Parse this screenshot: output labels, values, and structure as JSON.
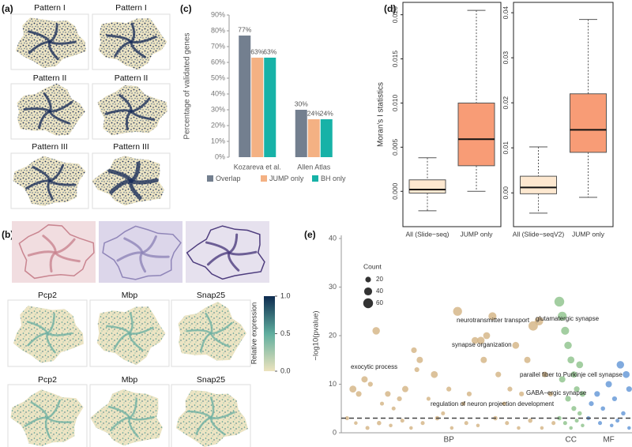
{
  "panels": {
    "a": {
      "label": "(a)",
      "titles": [
        "Pattern I",
        "Pattern I",
        "Pattern II",
        "Pattern II",
        "Pattern III",
        "Pattern III"
      ]
    },
    "b": {
      "label": "(b)",
      "genes_row1": [
        "Pcp2",
        "Mbp",
        "Snap25"
      ],
      "genes_row2": [
        "Pcp2",
        "Mbp",
        "Snap25"
      ],
      "colorbar": {
        "label": "Relative expression",
        "lim": [
          0,
          1
        ],
        "colors": [
          "#ede3bd",
          "#5fae9e",
          "#0d2b4f"
        ],
        "ticks": [
          {
            "value": 0,
            "label": "0.0"
          },
          0.5,
          {
            "value": 1,
            "label": "1.0"
          }
        ]
      }
    },
    "c": {
      "label": "(c)"
    },
    "d": {
      "label": "(d)"
    },
    "e": {
      "label": "(e)"
    }
  },
  "chart_data": [
    {
      "type": "bar",
      "ylabel": "Percentage of validated genes",
      "categories": [
        "Kozareva et al.",
        "Allen Atlas"
      ],
      "series": [
        {
          "name": "Overlap",
          "color": "#737f8f",
          "values": [
            77,
            30
          ],
          "value_labels": [
            "77%",
            "30%"
          ]
        },
        {
          "name": "JUMP only",
          "color": "#f4b183",
          "values": [
            63,
            24
          ],
          "value_labels": [
            "63%",
            "24%"
          ]
        },
        {
          "name": "BH only",
          "color": "#17b2a7",
          "values": [
            63,
            24
          ],
          "value_labels": [
            "63%",
            "24%"
          ]
        }
      ],
      "ylim": [
        0,
        90
      ],
      "yticks": [
        {
          "value": 0,
          "label": "0%"
        },
        {
          "value": 10,
          "label": "10%"
        },
        {
          "value": 20,
          "label": "20%"
        },
        {
          "value": 30,
          "label": "30%"
        },
        {
          "value": 40,
          "label": "40%"
        },
        {
          "value": 50,
          "label": "50%"
        },
        {
          "value": 60,
          "label": "60%"
        },
        {
          "value": 70,
          "label": "70%"
        },
        {
          "value": 80,
          "label": "80%"
        },
        {
          "value": 90,
          "label": "90%"
        }
      ],
      "legend": "bottom"
    },
    {
      "type": "box",
      "ylabel": "Moran's I statistics",
      "categories": [
        "All (Slide−seq)",
        "JUMP only"
      ],
      "colors": [
        "#fde8d0",
        "#f89c76"
      ],
      "boxes": [
        {
          "min": -0.0022,
          "q1": -0.0002,
          "median": 0.0002,
          "q3": 0.0013,
          "max": 0.0038
        },
        {
          "min": 0.0,
          "q1": 0.0029,
          "median": 0.0059,
          "q3": 0.01,
          "max": 0.0205
        }
      ],
      "ylim": [
        -0.004,
        0.0214
      ],
      "yticks": [
        {
          "value": 0,
          "label": "0.000"
        },
        0.005,
        {
          "value": 0.01,
          "label": "0.010"
        },
        0.015,
        {
          "value": 0.02,
          "label": "0.020"
        }
      ]
    },
    {
      "type": "box",
      "categories": [
        "All (Slide−seqV2)",
        "JUMP only"
      ],
      "colors": [
        "#fde8d0",
        "#f89c76"
      ],
      "boxes": [
        {
          "min": -0.0045,
          "q1": -0.0002,
          "median": 0.0012,
          "q3": 0.0037,
          "max": 0.0102
        },
        {
          "min": -0.001,
          "q1": 0.009,
          "median": 0.014,
          "q3": 0.022,
          "max": 0.0385
        }
      ],
      "ylim": [
        -0.0075,
        0.0423
      ],
      "yticks": [
        {
          "value": 0,
          "label": "0.00"
        },
        0.01,
        0.02,
        0.03,
        0.04
      ]
    },
    {
      "type": "scatter",
      "ylabel": "−log10(pvalue)",
      "xlim": [
        0,
        100
      ],
      "ylim": [
        0,
        40
      ],
      "yticks": [
        0,
        10,
        20,
        30,
        40
      ],
      "hline": 3,
      "size_legend": {
        "title": "Count",
        "values": [
          20,
          40,
          60
        ]
      },
      "series": [
        {
          "name": "BP",
          "color": "#d6b78a",
          "range": [
            0,
            74
          ],
          "x": [
            4,
            6,
            8,
            10,
            12,
            14,
            16,
            18,
            20,
            22,
            25,
            26,
            27,
            30,
            32,
            35,
            37,
            40,
            42,
            44,
            46,
            48,
            49,
            50,
            52,
            54,
            56,
            58,
            60,
            62,
            64,
            66,
            68,
            70,
            72,
            2,
            5,
            9,
            13,
            17,
            21,
            24,
            28,
            33,
            38,
            43,
            47,
            53,
            57,
            61,
            65,
            69,
            73
          ],
          "y": [
            9,
            8,
            11,
            10,
            21,
            6,
            8,
            5,
            7,
            9,
            17,
            13,
            15,
            7,
            12,
            4,
            9,
            25,
            6,
            8,
            19,
            19,
            15,
            20,
            24,
            12,
            6,
            9,
            18,
            8,
            15,
            22,
            23,
            12,
            8,
            3,
            2,
            1,
            2,
            1.5,
            2.5,
            1,
            2,
            3,
            1,
            2,
            1.5,
            3,
            2,
            1,
            2.5,
            1,
            2
          ],
          "sizes": [
            30,
            20,
            25,
            15,
            35,
            10,
            20,
            10,
            15,
            25,
            20,
            15,
            25,
            10,
            30,
            10,
            15,
            50,
            10,
            15,
            30,
            35,
            25,
            30,
            40,
            20,
            10,
            15,
            30,
            15,
            25,
            55,
            45,
            20,
            15,
            10,
            8,
            10,
            12,
            8,
            10,
            8,
            10,
            12,
            8,
            10,
            8,
            12,
            10,
            8,
            12,
            8,
            10
          ]
        },
        {
          "name": "CC",
          "color": "#93c590",
          "range": [
            74,
            84
          ],
          "x": [
            75,
            76,
            77,
            78,
            79,
            80,
            81,
            82,
            76,
            78,
            80,
            82,
            83,
            75,
            77,
            79,
            81,
            83
          ],
          "y": [
            27,
            24,
            21,
            18,
            15,
            12,
            9,
            14,
            11,
            7,
            5,
            4,
            8,
            3,
            2,
            1,
            2.5,
            1.5
          ],
          "sizes": [
            60,
            50,
            40,
            35,
            30,
            25,
            20,
            30,
            25,
            20,
            15,
            12,
            20,
            12,
            10,
            8,
            10,
            8
          ]
        },
        {
          "name": "MF",
          "color": "#6a9bd8",
          "range": [
            84,
            100
          ],
          "x": [
            96,
            98,
            92,
            88,
            94,
            86,
            90,
            97,
            99,
            85,
            89,
            93,
            95,
            99
          ],
          "y": [
            14,
            12,
            10,
            8,
            7,
            6,
            5,
            4,
            9,
            3,
            2,
            1.5,
            2.5,
            1
          ],
          "sizes": [
            35,
            30,
            25,
            20,
            15,
            15,
            12,
            12,
            20,
            10,
            10,
            8,
            10,
            8
          ]
        }
      ],
      "annotations": [
        "neurotransmitter transport",
        "glutamatergic synapse",
        "synapse organization",
        "exocytic process",
        "parallel fiber to Purkinje cell synapse",
        "GABA−ergic synapse",
        "regulation of neuron projection development"
      ]
    }
  ]
}
